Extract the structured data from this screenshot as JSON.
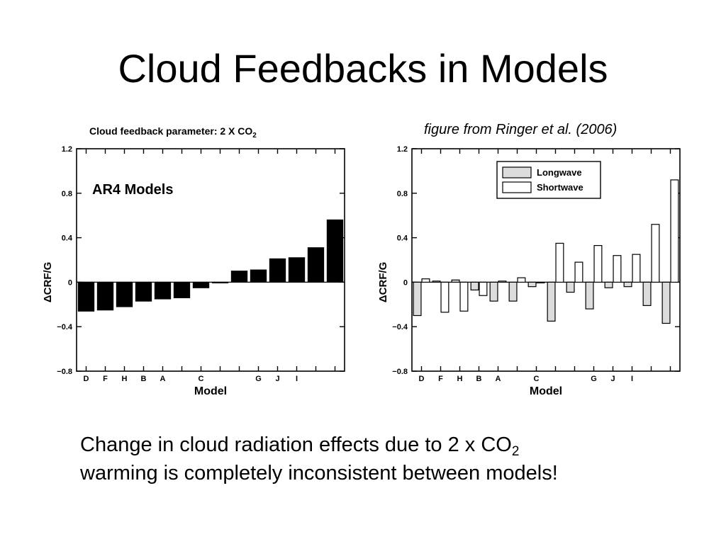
{
  "slide": {
    "title": "Cloud Feedbacks in Models",
    "credit": "figure from Ringer et al. (2006)",
    "caption": {
      "line1_main": "Change in cloud radiation effects due to 2 x CO",
      "line1_sub": "2",
      "line2": "warming is completely inconsistent between models!"
    }
  },
  "chart_data": [
    {
      "type": "bar",
      "title": "Cloud feedback parameter: 2 X CO",
      "title_sub": "2",
      "annotation": "AR4 Models",
      "xlabel": "Model",
      "ylabel": "ΔCRF/G",
      "ylim": [
        -0.8,
        1.2
      ],
      "yticks": [
        1.2,
        0.8,
        0.4,
        0,
        -0.4,
        -0.8
      ],
      "ytick_labels": [
        "1.2",
        "0.8",
        "0.4",
        "0",
        "−0.4",
        "−0.8"
      ],
      "category_labels": [
        "D",
        "F",
        "H",
        "B",
        "A",
        "",
        "C",
        "",
        "",
        "G",
        "J",
        "I",
        "",
        ""
      ],
      "series": [
        {
          "values": [
            -0.26,
            -0.25,
            -0.22,
            -0.17,
            -0.15,
            -0.14,
            -0.05,
            0.0,
            0.1,
            0.11,
            0.21,
            0.22,
            0.31,
            0.56
          ]
        }
      ],
      "colors": {
        "bar": "#000000"
      },
      "grid": false
    },
    {
      "type": "bar",
      "xlabel": "Model",
      "ylabel": "ΔCRF/G",
      "ylim": [
        -0.8,
        1.2
      ],
      "yticks": [
        1.2,
        0.8,
        0.4,
        0,
        -0.4,
        -0.8
      ],
      "ytick_labels": [
        "1.2",
        "0.8",
        "0.4",
        "0",
        "−0.4",
        "−0.8"
      ],
      "category_labels": [
        "D",
        "F",
        "H",
        "B",
        "A",
        "",
        "C",
        "",
        "",
        "G",
        "J",
        "I",
        "",
        ""
      ],
      "legend": {
        "position": "top-left",
        "entries": [
          "Longwave",
          "Shortwave"
        ]
      },
      "series": [
        {
          "name": "Longwave",
          "values": [
            -0.3,
            0.01,
            0.02,
            -0.07,
            -0.17,
            -0.17,
            -0.04,
            -0.35,
            -0.09,
            -0.24,
            -0.05,
            -0.04,
            -0.21,
            -0.37
          ]
        },
        {
          "name": "Shortwave",
          "values": [
            0.03,
            -0.27,
            -0.26,
            -0.12,
            0.01,
            0.04,
            0.0,
            0.35,
            0.18,
            0.33,
            0.24,
            0.25,
            0.52,
            0.92
          ]
        }
      ],
      "colors": {
        "Longwave": "#dcdcdc",
        "Shortwave": "#ffffff"
      },
      "grid": false
    }
  ]
}
